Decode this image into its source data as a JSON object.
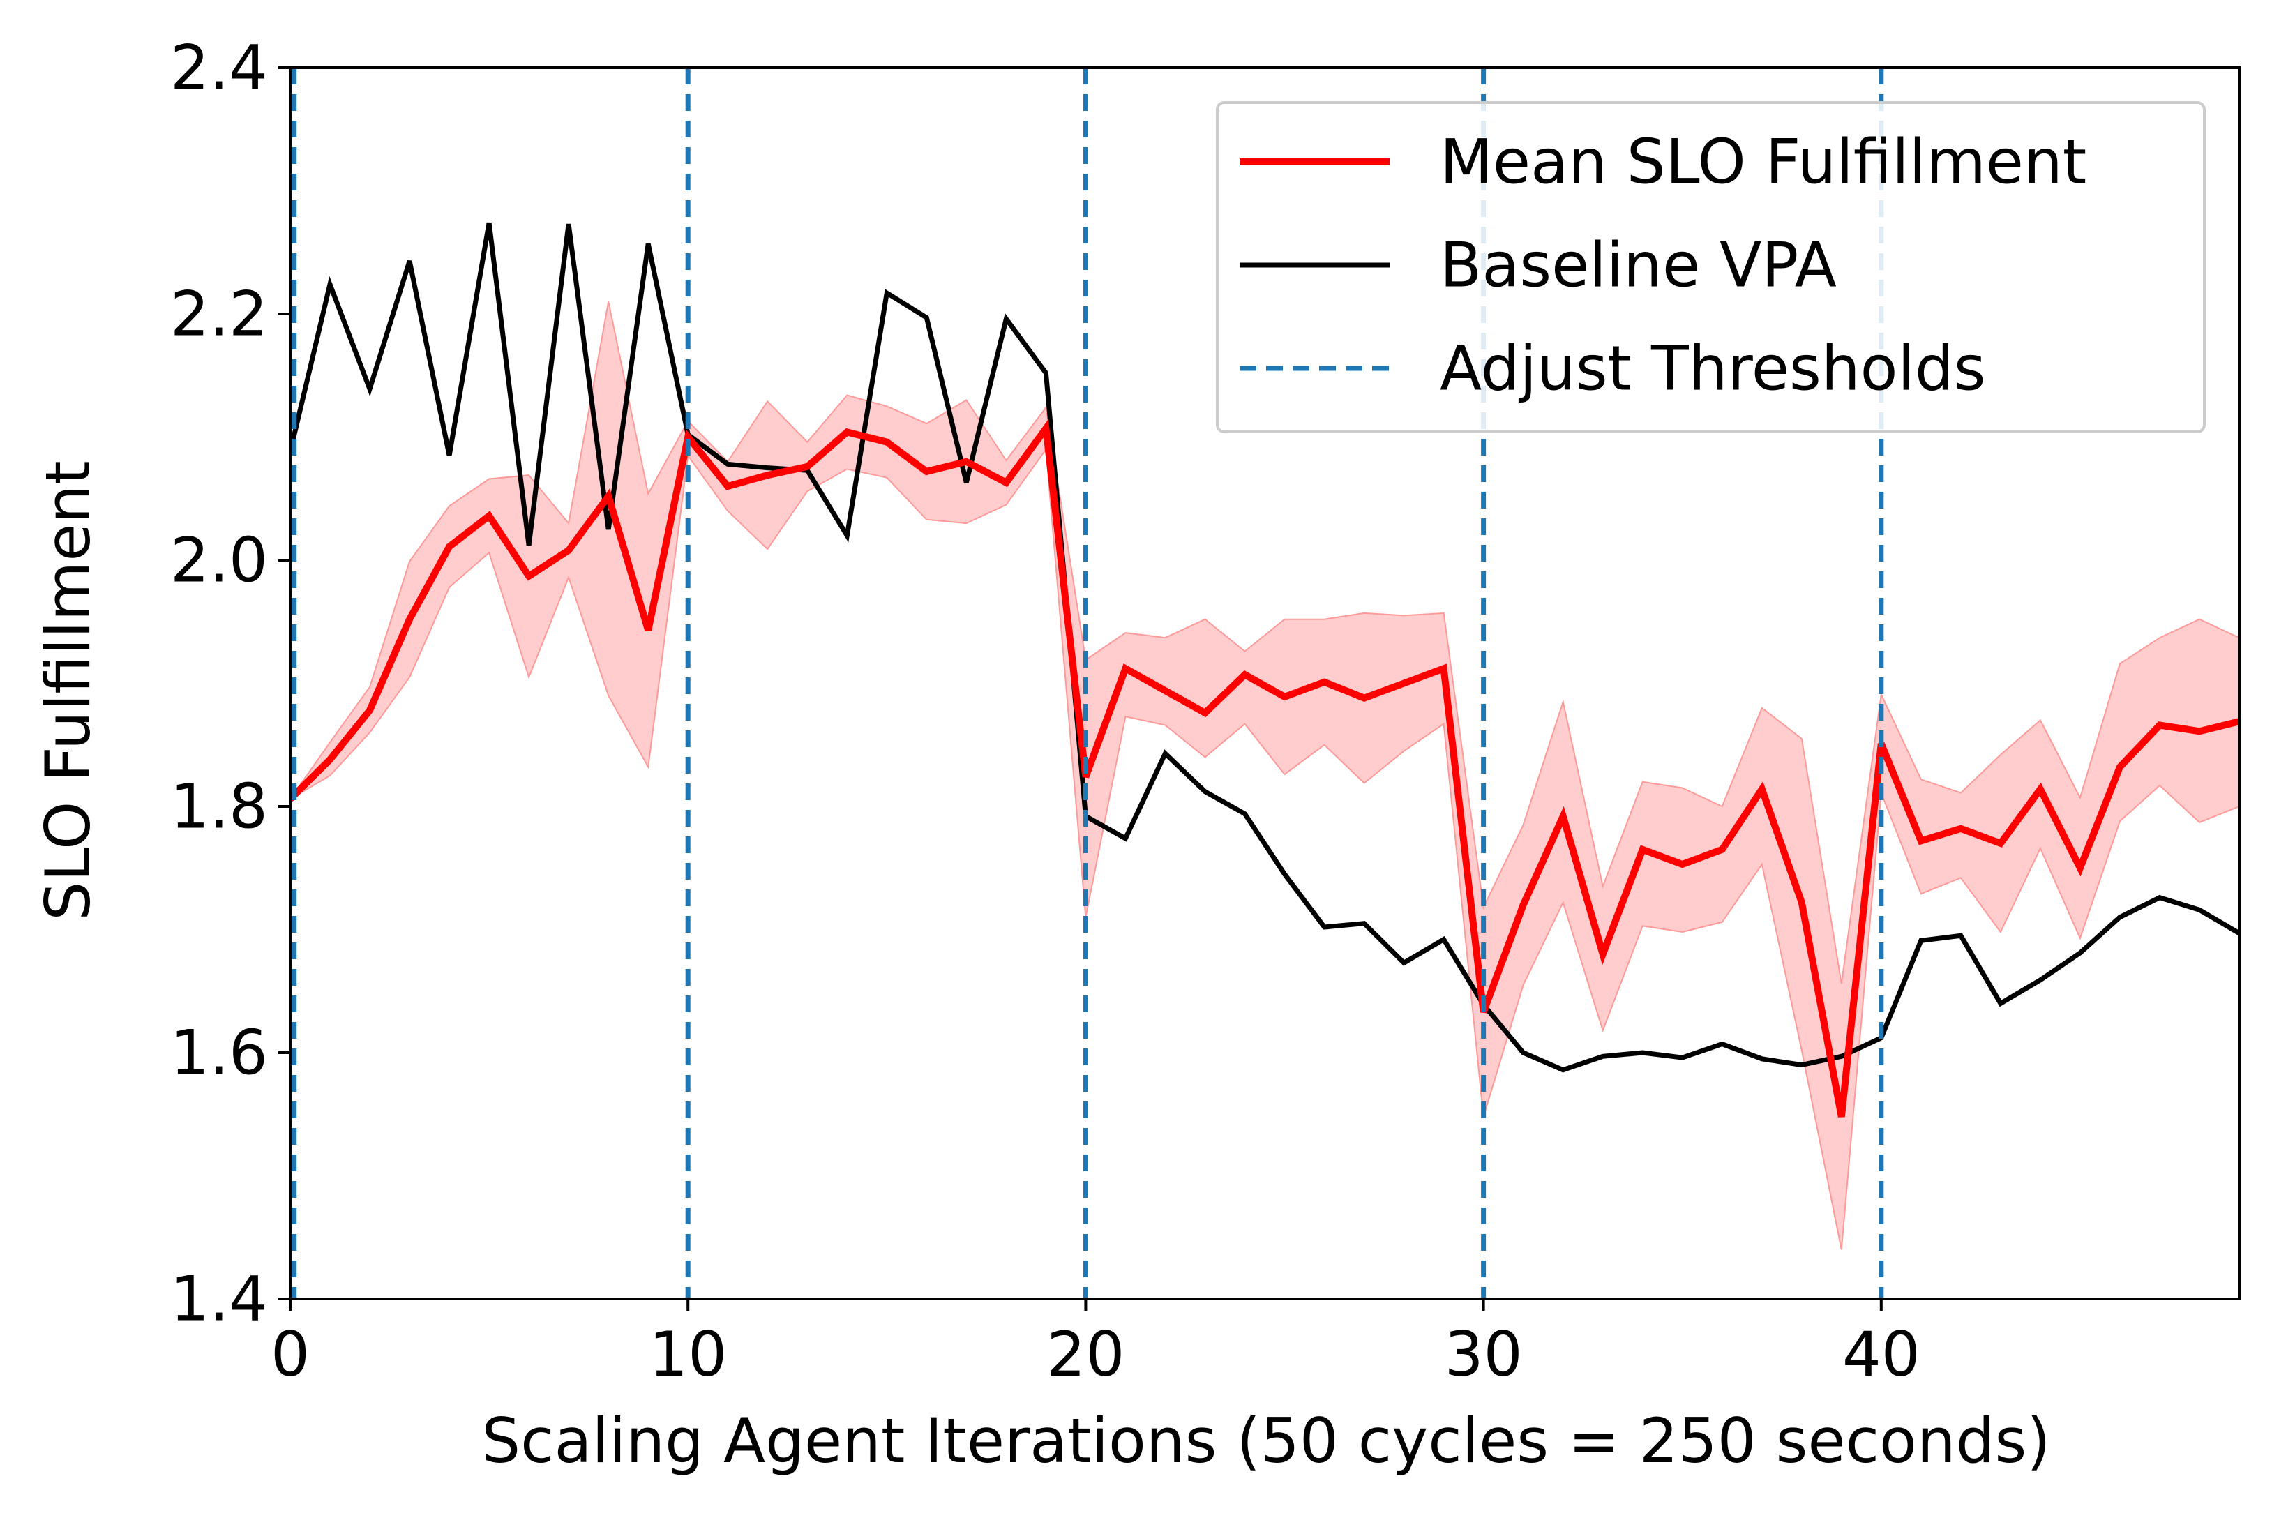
{
  "chart_data": {
    "type": "line",
    "title": "",
    "xlabel": "Scaling Agent Iterations (50 cycles = 250 seconds)",
    "ylabel": "SLO Fulfillment",
    "xlim": [
      0,
      49
    ],
    "ylim": [
      1.4,
      2.4
    ],
    "xticks": [
      0,
      10,
      20,
      30,
      40
    ],
    "yticks": [
      1.4,
      1.6,
      1.8,
      2.0,
      2.2,
      2.4
    ],
    "xtick_labels": [
      "0",
      "10",
      "20",
      "30",
      "40"
    ],
    "ytick_labels": [
      "1.4",
      "1.6",
      "1.8",
      "2.0",
      "2.2",
      "2.4"
    ],
    "grid": false,
    "legend_position": "top-right",
    "x": [
      0,
      1,
      2,
      3,
      4,
      5,
      6,
      7,
      8,
      9,
      10,
      11,
      12,
      13,
      14,
      15,
      16,
      17,
      18,
      19,
      20,
      21,
      22,
      23,
      24,
      25,
      26,
      27,
      28,
      29,
      30,
      31,
      32,
      33,
      34,
      35,
      36,
      37,
      38,
      39,
      40,
      41,
      42,
      43,
      44,
      45,
      46,
      47,
      48,
      49
    ],
    "series": [
      {
        "name": "Mean SLO Fulfillment",
        "color": "#ff0000",
        "values": [
          1.806,
          1.838,
          1.878,
          1.952,
          2.011,
          2.036,
          1.987,
          2.008,
          2.052,
          1.943,
          2.1,
          2.06,
          2.069,
          2.076,
          2.104,
          2.096,
          2.072,
          2.08,
          2.063,
          2.107,
          1.824,
          1.912,
          1.894,
          1.876,
          1.907,
          1.889,
          1.901,
          1.888,
          1.9,
          1.912,
          1.633,
          1.72,
          1.792,
          1.68,
          1.765,
          1.753,
          1.765,
          1.814,
          1.722,
          1.548,
          1.851,
          1.772,
          1.782,
          1.77,
          1.814,
          1.75,
          1.832,
          1.866,
          1.861,
          1.869
        ],
        "lower": [
          1.806,
          1.825,
          1.86,
          1.905,
          1.978,
          2.006,
          1.905,
          1.986,
          1.89,
          1.832,
          2.085,
          2.04,
          2.009,
          2.056,
          2.074,
          2.067,
          2.033,
          2.03,
          2.045,
          2.09,
          1.71,
          1.873,
          1.866,
          1.84,
          1.867,
          1.826,
          1.85,
          1.819,
          1.845,
          1.867,
          1.548,
          1.655,
          1.722,
          1.618,
          1.703,
          1.698,
          1.706,
          1.753,
          1.602,
          1.44,
          1.811,
          1.729,
          1.742,
          1.698,
          1.766,
          1.693,
          1.788,
          1.817,
          1.787,
          1.8
        ],
        "upper": [
          1.806,
          1.852,
          1.897,
          1.999,
          2.044,
          2.066,
          2.069,
          2.03,
          2.21,
          2.054,
          2.113,
          2.08,
          2.129,
          2.096,
          2.134,
          2.125,
          2.111,
          2.13,
          2.081,
          2.124,
          1.919,
          1.941,
          1.937,
          1.952,
          1.926,
          1.952,
          1.952,
          1.957,
          1.955,
          1.957,
          1.718,
          1.785,
          1.885,
          1.735,
          1.82,
          1.815,
          1.8,
          1.88,
          1.855,
          1.656,
          1.891,
          1.822,
          1.811,
          1.842,
          1.87,
          1.807,
          1.916,
          1.937,
          1.952,
          1.937
        ],
        "band_color": "#ffc8c8"
      },
      {
        "name": "Baseline VPA",
        "color": "#000000",
        "values": [
          2.088,
          2.224,
          2.139,
          2.243,
          2.085,
          2.274,
          2.012,
          2.273,
          2.025,
          2.257,
          2.102,
          2.078,
          2.075,
          2.073,
          2.02,
          2.217,
          2.197,
          2.063,
          2.196,
          2.152,
          1.792,
          1.774,
          1.843,
          1.812,
          1.794,
          1.745,
          1.702,
          1.705,
          1.673,
          1.692,
          1.639,
          1.6,
          1.586,
          1.597,
          1.6,
          1.596,
          1.607,
          1.595,
          1.59,
          1.597,
          1.612,
          1.691,
          1.695,
          1.64,
          1.659,
          1.681,
          1.71,
          1.726,
          1.716,
          1.697
        ]
      }
    ],
    "vlines": {
      "name": "Adjust Thresholds",
      "color": "#1f77b4",
      "x": [
        0.1,
        10,
        20,
        30,
        40
      ]
    }
  }
}
